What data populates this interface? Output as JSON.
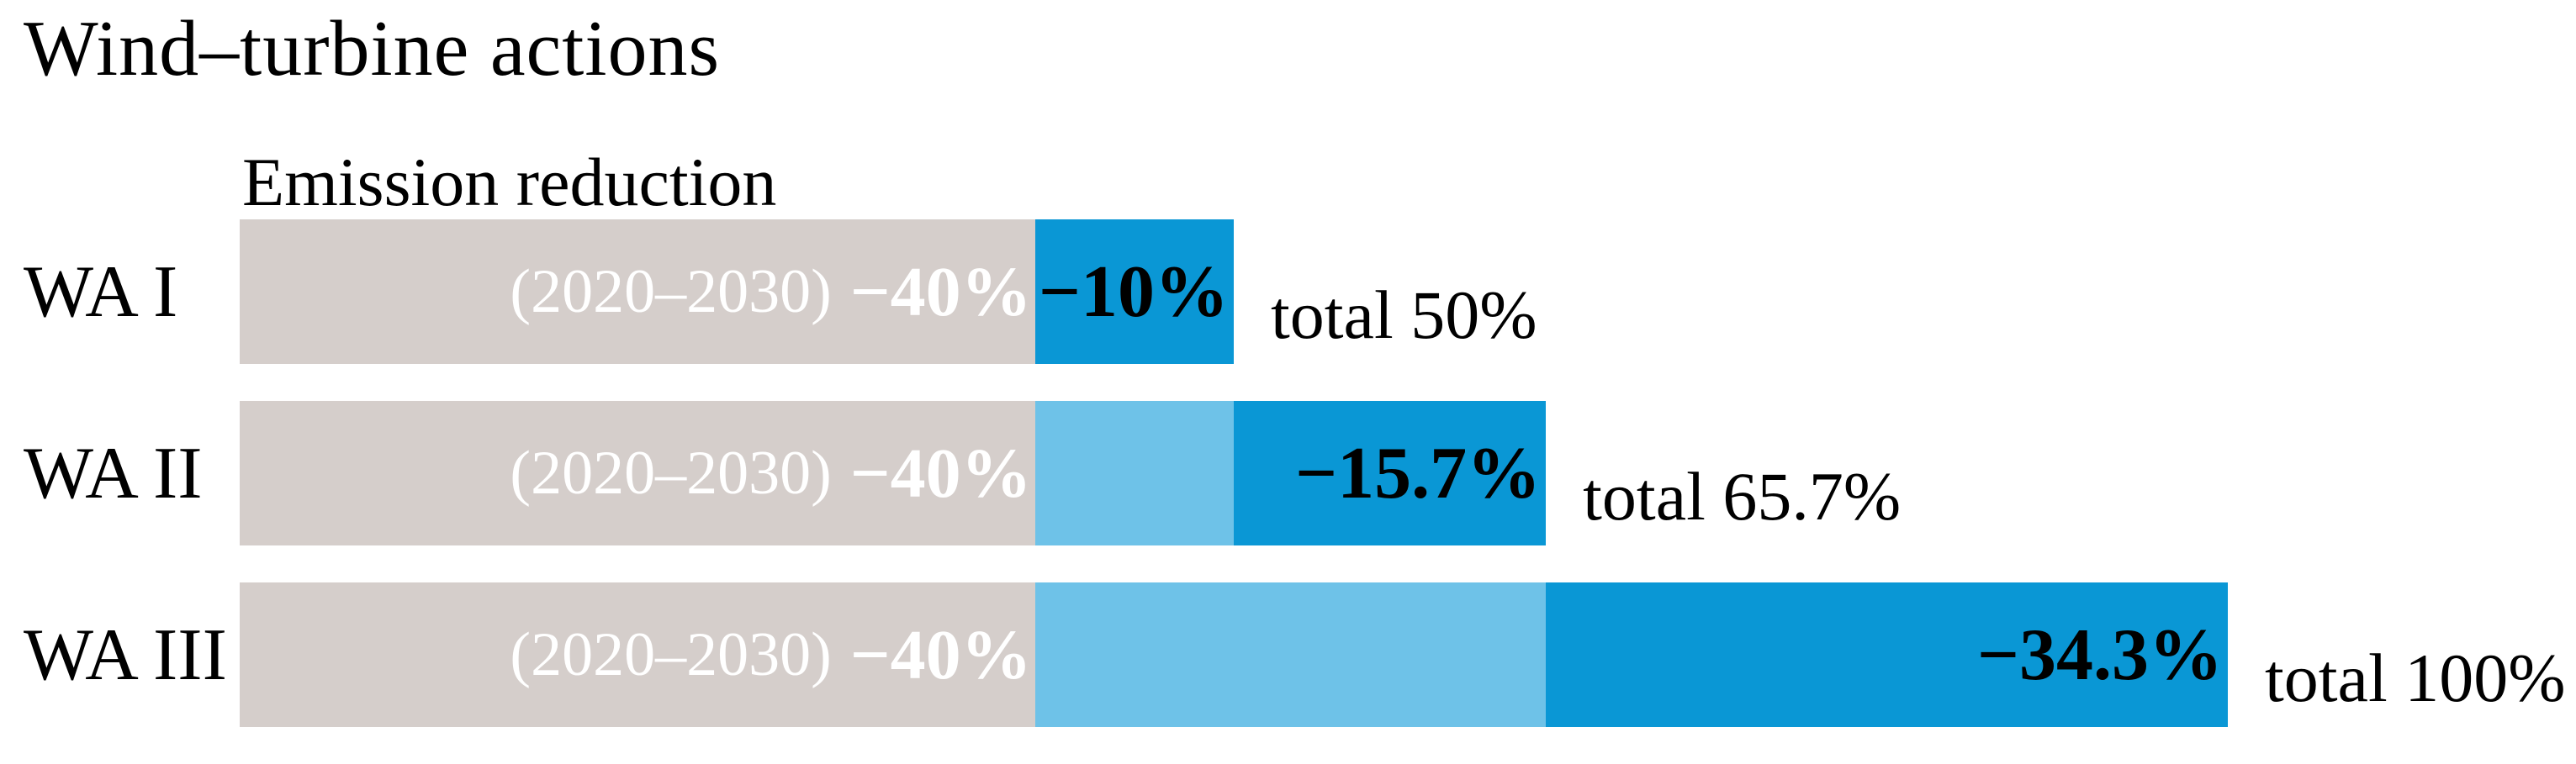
{
  "chart_data": {
    "type": "bar",
    "orientation": "horizontal-stacked",
    "title": "Wind–turbine actions",
    "axis_title": "Emission reduction",
    "base_period_label": "(2020–2030)",
    "base_value_label": "−40%",
    "base_value_pct": 40,
    "categories": [
      "WA I",
      "WA II",
      "WA III"
    ],
    "rows": [
      {
        "category": "WA I",
        "base_pct": 40,
        "prior_pct": 0,
        "new_pct": 10,
        "new_label": "−10%",
        "total_label": "total 50%",
        "total_pct": 50
      },
      {
        "category": "WA II",
        "base_pct": 40,
        "prior_pct": 10,
        "new_pct": 15.7,
        "new_label": "−15.7%",
        "total_label": "total 65.7%",
        "total_pct": 65.7
      },
      {
        "category": "WA III",
        "base_pct": 40,
        "prior_pct": 25.7,
        "new_pct": 34.3,
        "new_label": "−34.3%",
        "total_label": "total 100%",
        "total_pct": 100
      }
    ],
    "colors": {
      "base_bar": "#d5cecb",
      "prior_bar": "#6ec2e8",
      "new_bar": "#0a97d5",
      "base_bar_text": "#ffffff",
      "new_bar_text": "#000000"
    },
    "xlim": [
      0,
      100
    ],
    "grid": false,
    "legend": "none"
  }
}
